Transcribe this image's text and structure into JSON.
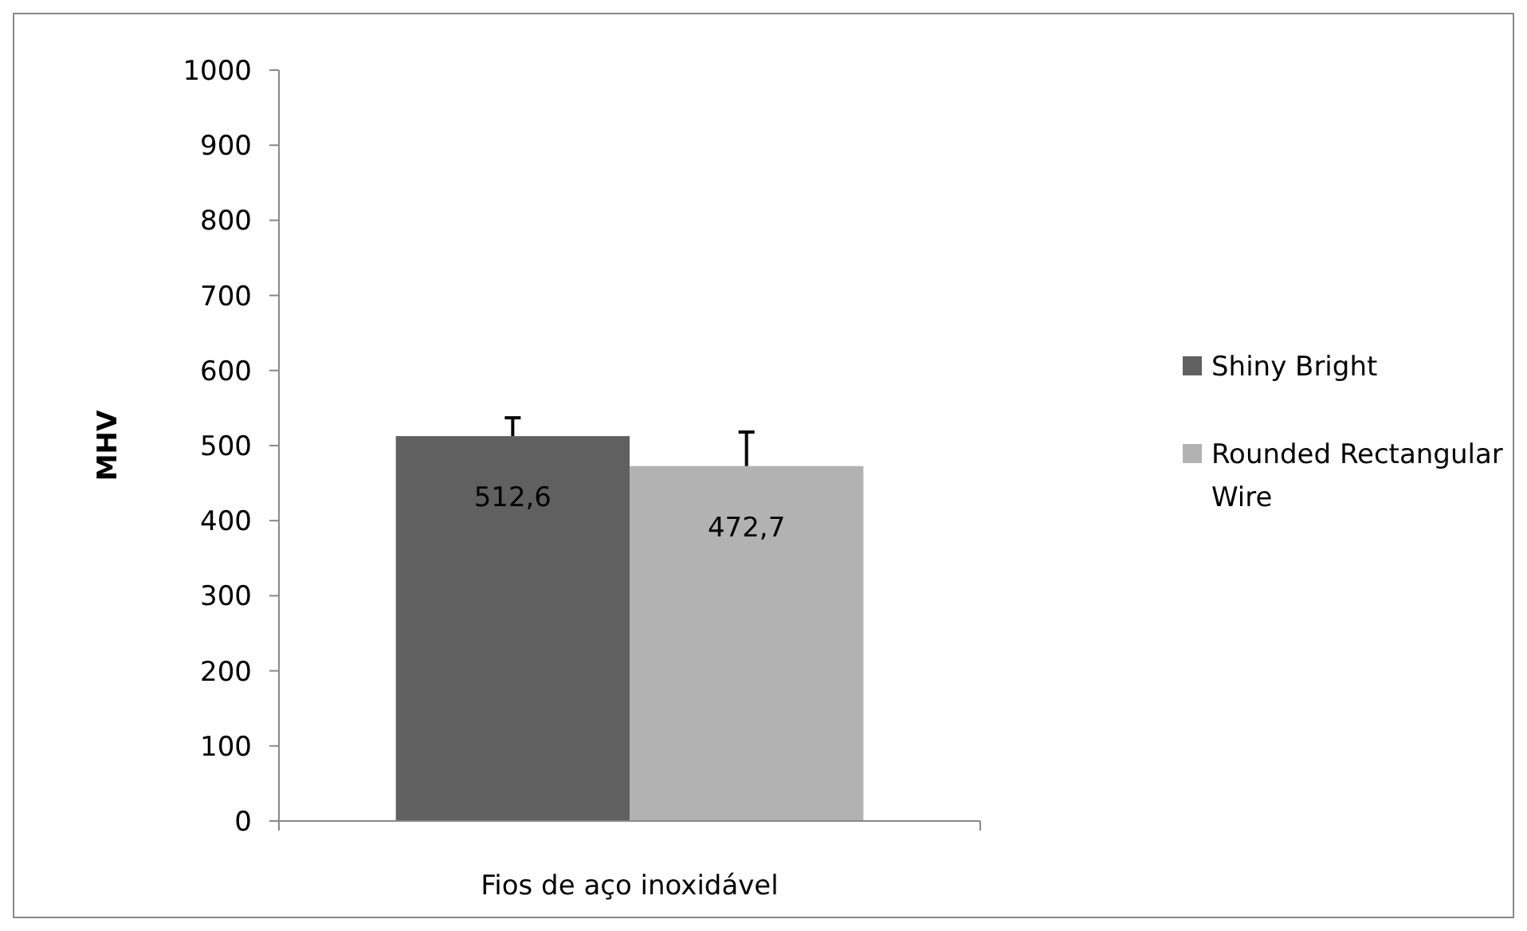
{
  "chart_data": {
    "type": "bar",
    "ylabel": "MHV",
    "categories": [
      "Fios de aço inoxidável"
    ],
    "series": [
      {
        "name": "Shiny Bright",
        "color": "#606060",
        "values": [
          512.6
        ],
        "errors": [
          [
            512.6,
            537
          ]
        ],
        "value_labels": [
          "512,6"
        ]
      },
      {
        "name": "Rounded Rectangular Wire",
        "color": "#b2b2b2",
        "values": [
          472.7
        ],
        "errors": [
          [
            472.7,
            518
          ]
        ],
        "value_labels": [
          "472,7"
        ]
      }
    ],
    "ylim": [
      0,
      1000
    ],
    "yticks": [
      0,
      100,
      200,
      300,
      400,
      500,
      600,
      700,
      800,
      900,
      1000
    ],
    "grid": false,
    "legend": "right"
  }
}
